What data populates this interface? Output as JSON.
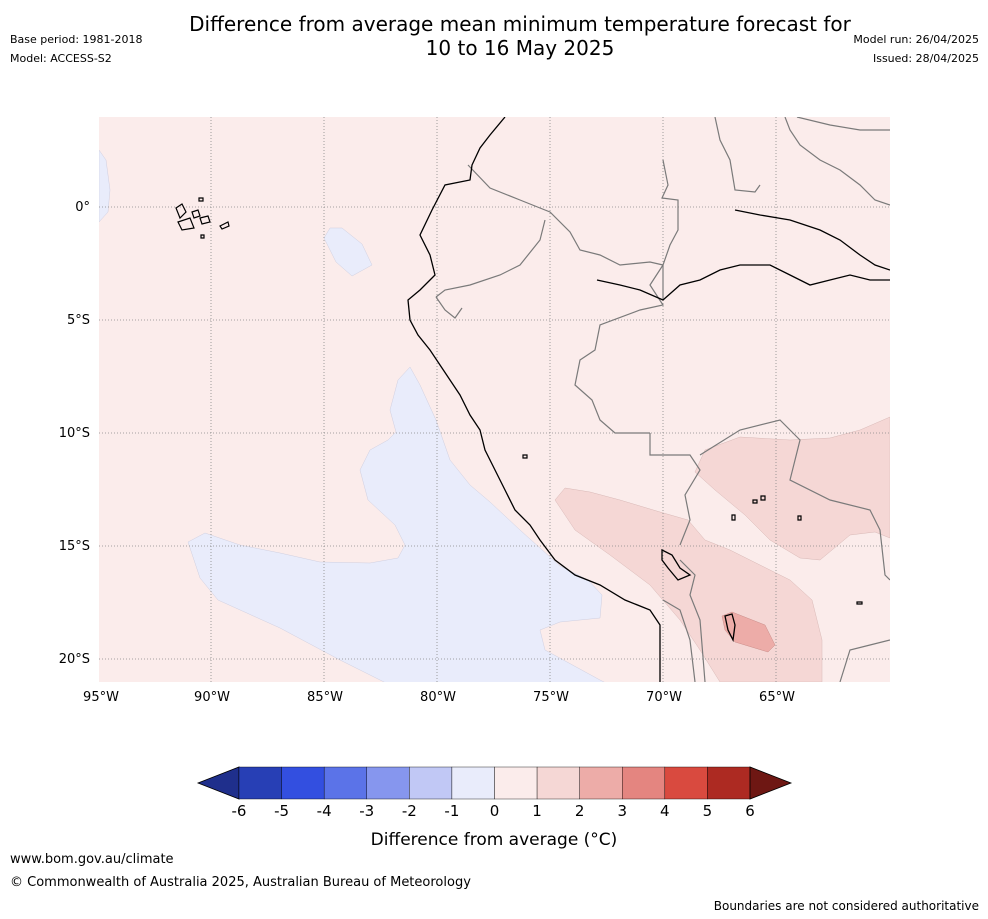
{
  "title_line1": "Difference from average mean minimum temperature forecast for",
  "title_line2": "10 to 16 May 2025",
  "meta_left": [
    "Base period: 1981-2018",
    "Model: ACCESS-S2"
  ],
  "meta_right": [
    "Model run: 26/04/2025",
    "Issued: 28/04/2025"
  ],
  "map": {
    "region": "western South America",
    "lat_labels": [
      "0°",
      "5°S",
      "10°S",
      "15°S",
      "20°S"
    ],
    "lon_labels": [
      "95°W",
      "90°W",
      "85°W",
      "80°W",
      "75°W",
      "70°W",
      "65°W"
    ],
    "background_color": "#fbeceb",
    "cool_color": "#e9ecfb",
    "warm_color": "#f5d7d5",
    "warmer_color": "#edaca8"
  },
  "colorbar": {
    "ticks": [
      "-6",
      "-5",
      "-4",
      "-3",
      "-2",
      "-1",
      "0",
      "1",
      "2",
      "3",
      "4",
      "5",
      "6"
    ],
    "colors": [
      "#1f2f8c",
      "#273fb5",
      "#334fe0",
      "#5b73e8",
      "#8696ee",
      "#c1c8f5",
      "#e9ecfb",
      "#fbeceb",
      "#f5d7d5",
      "#edaca8",
      "#e48580",
      "#d94a3f",
      "#ad2a22",
      "#6e1713"
    ],
    "label": "Difference from average (°C)"
  },
  "footer": {
    "url": "www.bom.gov.au/climate",
    "copyright": "© Commonwealth of Australia 2025, Australian Bureau of Meteorology",
    "disclaimer": "Boundaries are not considered authoritative"
  }
}
